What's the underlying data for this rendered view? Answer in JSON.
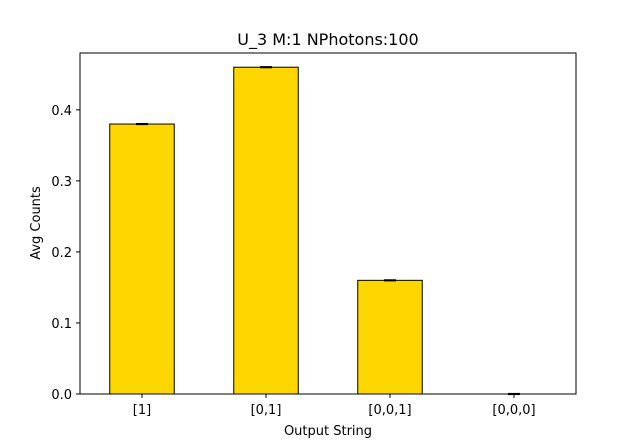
{
  "chart_data": {
    "type": "bar",
    "title": "U_3 M:1 NPhotons:100",
    "xlabel": "Output String",
    "ylabel": "Avg Counts",
    "categories": [
      "[1]",
      "[0,1]",
      "[0,0,1]",
      "[0,0,0]"
    ],
    "values": [
      0.38,
      0.46,
      0.16,
      0.0
    ],
    "errors": [
      0.0008,
      0.0008,
      0.0008,
      0.0008
    ],
    "ylim": [
      0,
      0.48
    ],
    "yticks": [
      0.0,
      0.1,
      0.2,
      0.3,
      0.4
    ],
    "ytick_labels": [
      "0.0",
      "0.1",
      "0.2",
      "0.3",
      "0.4"
    ],
    "bar_color": "#FFD700",
    "edge_color": "#000000",
    "grid": false,
    "legend": false
  }
}
